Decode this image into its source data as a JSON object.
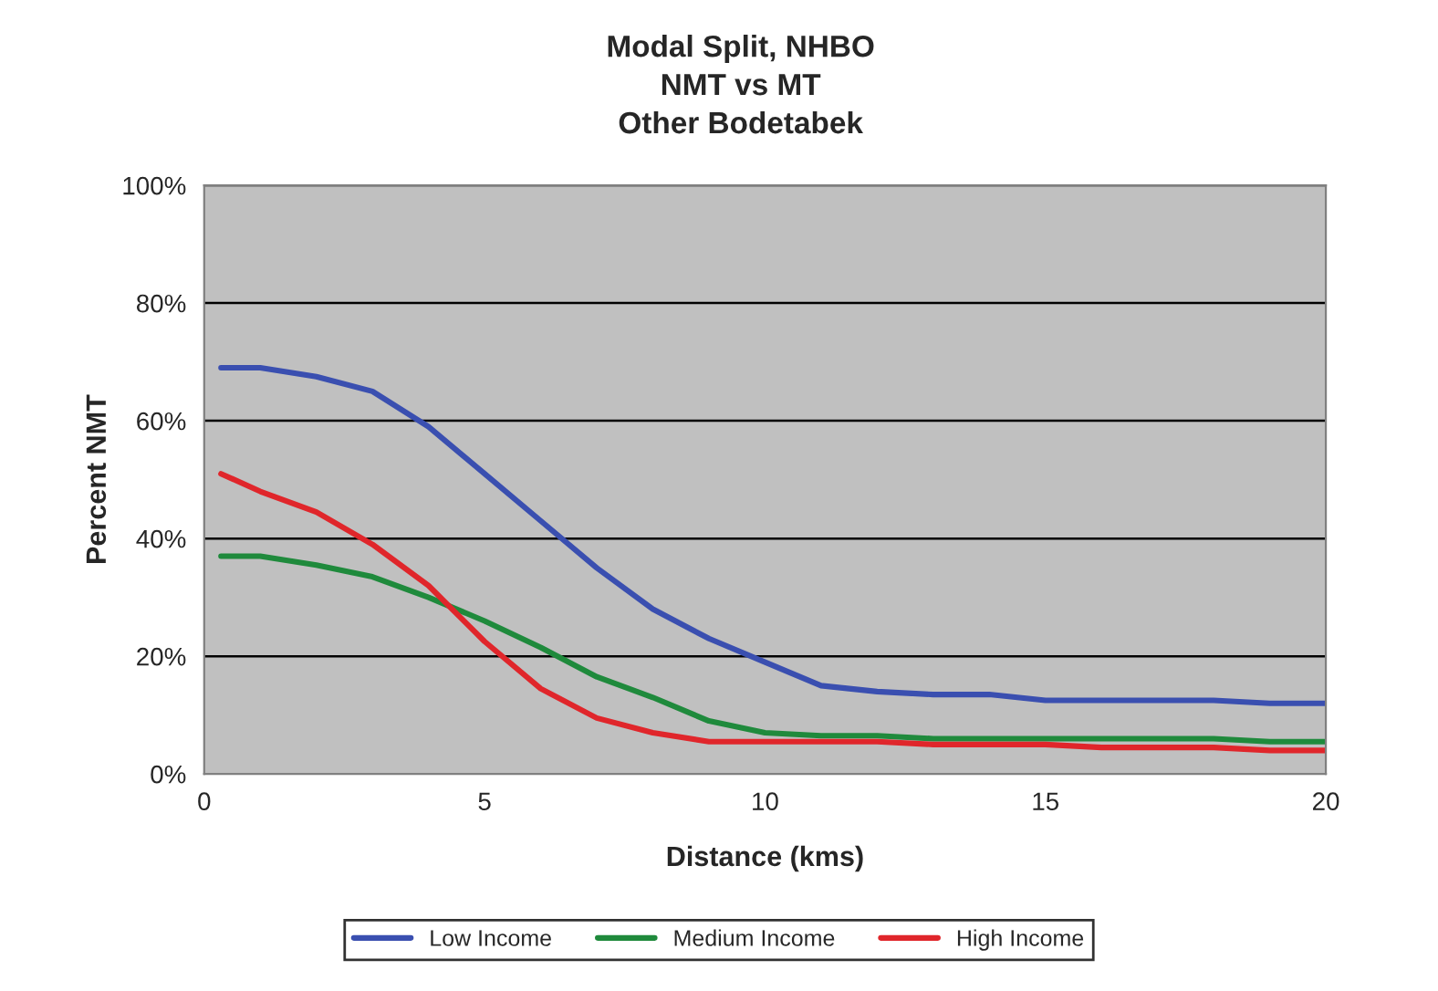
{
  "chart_data": {
    "type": "line",
    "title": "Modal Split, NHBO\nNMT vs MT\nOther Bodetabek",
    "xlabel": "Distance (kms)",
    "ylabel": "Percent NMT",
    "x": [
      0.3,
      1,
      2,
      3,
      4,
      5,
      6,
      7,
      8,
      9,
      10,
      11,
      12,
      13,
      14,
      15,
      16,
      17,
      18,
      19,
      20
    ],
    "series": [
      {
        "name": "Low Income",
        "color": "#3a4fb0",
        "values": [
          69,
          69,
          67.5,
          65,
          59,
          51,
          43,
          35,
          28,
          23,
          19,
          15,
          14,
          13.5,
          13.5,
          12.5,
          12.5,
          12.5,
          12.5,
          12,
          12
        ]
      },
      {
        "name": "Medium Income",
        "color": "#1f8a3c",
        "values": [
          37,
          37,
          35.5,
          33.5,
          30,
          26,
          21.5,
          16.5,
          13,
          9,
          7,
          6.5,
          6.5,
          6,
          6,
          6,
          6,
          6,
          6,
          5.5,
          5.5
        ]
      },
      {
        "name": "High Income",
        "color": "#e0262b",
        "values": [
          51,
          48,
          44.5,
          39,
          32,
          22.5,
          14.5,
          9.5,
          7,
          5.5,
          5.5,
          5.5,
          5.5,
          5,
          5,
          5,
          4.5,
          4.5,
          4.5,
          4,
          4
        ]
      }
    ],
    "xlim": [
      0,
      20
    ],
    "xticks": [
      0,
      5,
      10,
      15,
      20
    ],
    "ylim": [
      0,
      100
    ],
    "yticks": [
      {
        "value": 0,
        "label": "0%"
      },
      {
        "value": 20,
        "label": "20%"
      },
      {
        "value": 40,
        "label": "40%"
      },
      {
        "value": 60,
        "label": "60%"
      },
      {
        "value": 80,
        "label": "80%"
      },
      {
        "value": 100,
        "label": "100%"
      }
    ],
    "grid": "y",
    "legend": "bottom",
    "marker": "none",
    "line_style": "solid"
  }
}
